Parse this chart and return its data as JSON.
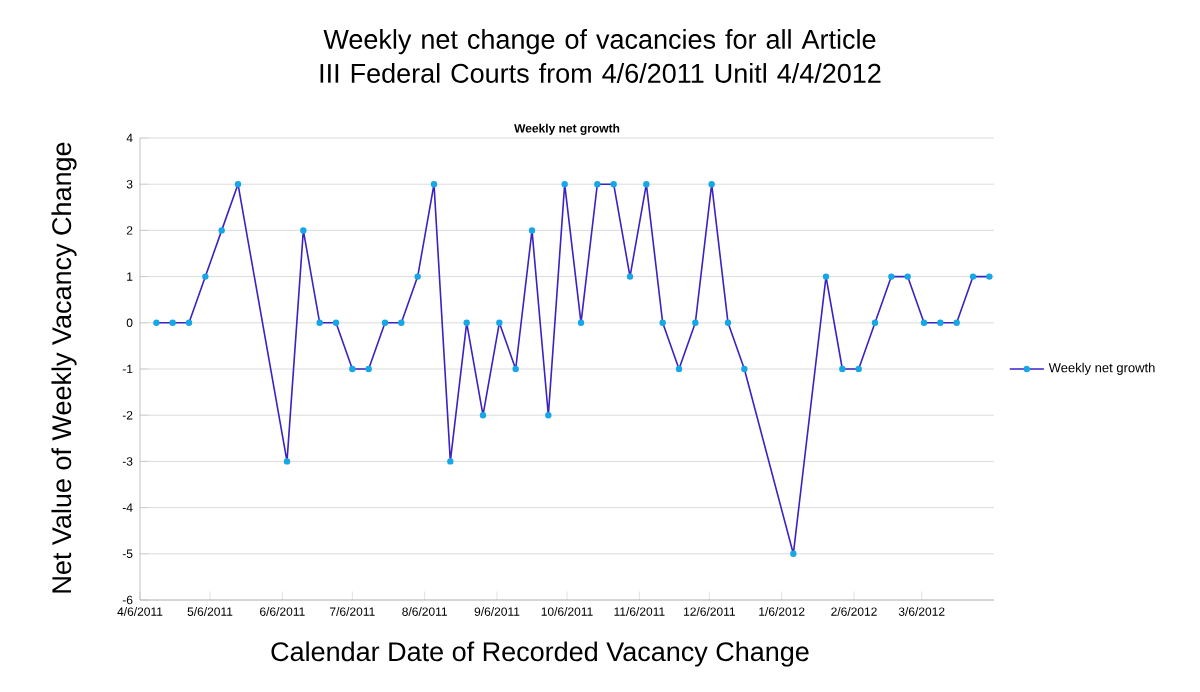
{
  "chart_data": {
    "type": "line",
    "title": "Weekly net change of vacancies for all Article III Federal Courts from 4/6/2011 Unitl 4/4/2012",
    "subtitle": "Weekly net growth",
    "xlabel": "Calendar Date of Recorded Vacancy Change",
    "ylabel": "Net Value of Weekly Vacancy Change",
    "x": [
      "2011-04-13",
      "2011-04-20",
      "2011-04-27",
      "2011-05-04",
      "2011-05-11",
      "2011-05-18",
      "2011-06-08",
      "2011-06-15",
      "2011-06-22",
      "2011-06-29",
      "2011-07-06",
      "2011-07-13",
      "2011-07-20",
      "2011-07-27",
      "2011-08-03",
      "2011-08-10",
      "2011-08-17",
      "2011-08-24",
      "2011-08-31",
      "2011-09-07",
      "2011-09-14",
      "2011-09-21",
      "2011-09-28",
      "2011-10-05",
      "2011-10-12",
      "2011-10-19",
      "2011-10-26",
      "2011-11-02",
      "2011-11-09",
      "2011-11-16",
      "2011-11-23",
      "2011-11-30",
      "2011-12-07",
      "2011-12-14",
      "2011-12-21",
      "2012-01-11",
      "2012-01-25",
      "2012-02-01",
      "2012-02-08",
      "2012-02-15",
      "2012-02-22",
      "2012-02-29",
      "2012-03-07",
      "2012-03-14",
      "2012-03-21",
      "2012-03-28",
      "2012-04-04"
    ],
    "series": [
      {
        "name": "Weekly net growth",
        "color": "#3a22c4",
        "values": [
          0,
          0,
          0,
          1,
          2,
          3,
          -3,
          2,
          0,
          0,
          -1,
          -1,
          0,
          0,
          1,
          3,
          -3,
          0,
          -2,
          0,
          -1,
          2,
          -2,
          3,
          0,
          3,
          3,
          1,
          3,
          0,
          -1,
          0,
          3,
          0,
          -1,
          -5,
          1,
          -1,
          -1,
          0,
          1,
          1,
          0,
          0,
          0,
          1,
          1
        ]
      }
    ],
    "xlim": [
      "2011-04-06",
      "2012-04-06"
    ],
    "xticks": [
      {
        "value": "2011-04-06",
        "label": "4/6/2011"
      },
      {
        "value": "2011-05-06",
        "label": "5/6/2011"
      },
      {
        "value": "2011-06-06",
        "label": "6/6/2011"
      },
      {
        "value": "2011-07-06",
        "label": "7/6/2011"
      },
      {
        "value": "2011-08-06",
        "label": "8/6/2011"
      },
      {
        "value": "2011-09-06",
        "label": "9/6/2011"
      },
      {
        "value": "2011-10-06",
        "label": "10/6/2011"
      },
      {
        "value": "2011-11-06",
        "label": "11/6/2011"
      },
      {
        "value": "2011-12-06",
        "label": "12/6/2011"
      },
      {
        "value": "2012-01-06",
        "label": "1/6/2012"
      },
      {
        "value": "2012-02-06",
        "label": "2/6/2012"
      },
      {
        "value": "2012-03-06",
        "label": "3/6/2012"
      }
    ],
    "ylim": [
      -6,
      4
    ],
    "yticks": [
      -6,
      -5,
      -4,
      -3,
      -2,
      -1,
      0,
      1,
      2,
      3,
      4
    ],
    "grid": "y",
    "legend": "right",
    "marker": "circle"
  }
}
